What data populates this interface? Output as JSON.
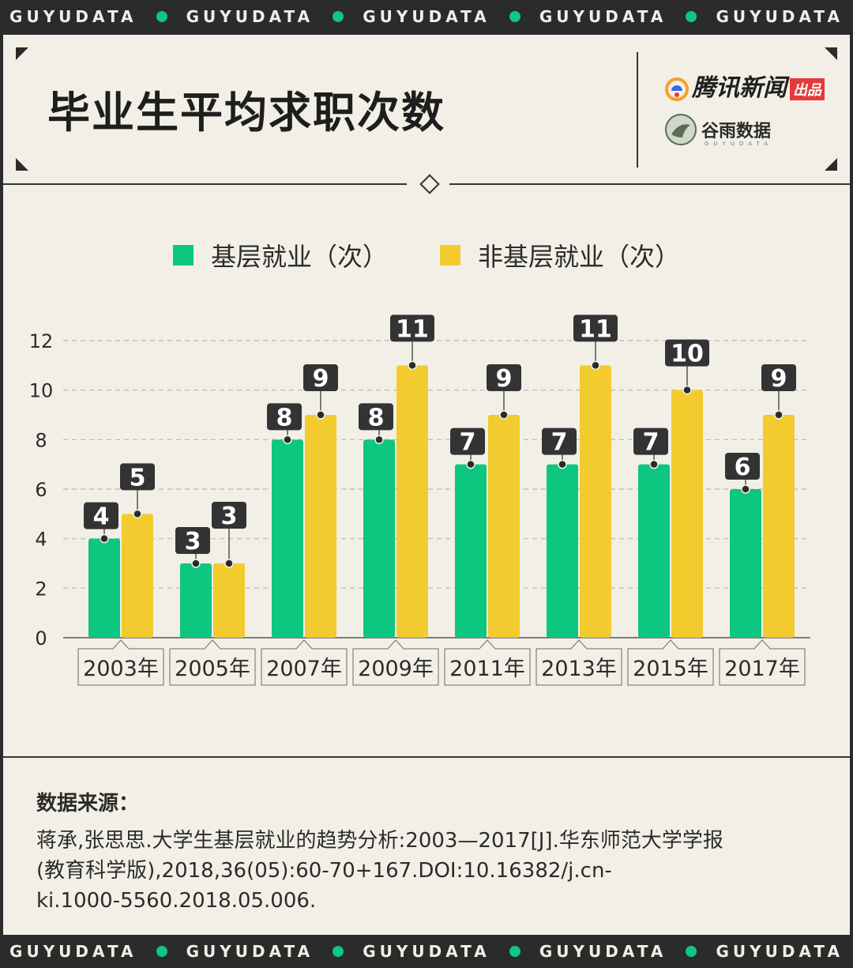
{
  "banner": {
    "text": "GUYUDATA",
    "items": [
      "GUYUDATA",
      "GUYUDATA",
      "GUYUDATA",
      "GUYUDATA",
      "GUYUDATA"
    ]
  },
  "header": {
    "title": "毕业生平均求职次数",
    "brand_tencent": "腾讯新闻",
    "brand_badge": "出品",
    "brand_guyu": "谷雨数据",
    "brand_guyu_sub": "GUYUDATA"
  },
  "colors": {
    "green": "#0dc680",
    "yellow": "#f2cb2f",
    "dark": "#2b2b2b",
    "background": "#f2f0e6"
  },
  "chart_data": {
    "type": "bar",
    "title": "毕业生平均求职次数",
    "categories": [
      "2003年",
      "2005年",
      "2007年",
      "2009年",
      "2011年",
      "2013年",
      "2015年",
      "2017年"
    ],
    "series": [
      {
        "name": "基层就业（次）",
        "values": [
          4,
          3,
          8,
          8,
          7,
          7,
          7,
          6
        ]
      },
      {
        "name": "非基层就业（次）",
        "values": [
          5,
          3,
          9,
          11,
          9,
          11,
          10,
          9
        ]
      }
    ],
    "ylim": [
      0,
      12
    ],
    "yticks": [
      "0",
      "2",
      "4",
      "6",
      "8",
      "10",
      "12"
    ],
    "grid": true,
    "legend": "top-center"
  },
  "source": {
    "label": "数据来源：",
    "line1": "蒋承,张思思.大学生基层就业的趋势分析:2003—2017[J].华东师范大学学报",
    "line2": "(教育科学版),2018,36(05):60-70+167.DOI:10.16382/j.cn-",
    "line3": "ki.1000-5560.2018.05.006."
  }
}
